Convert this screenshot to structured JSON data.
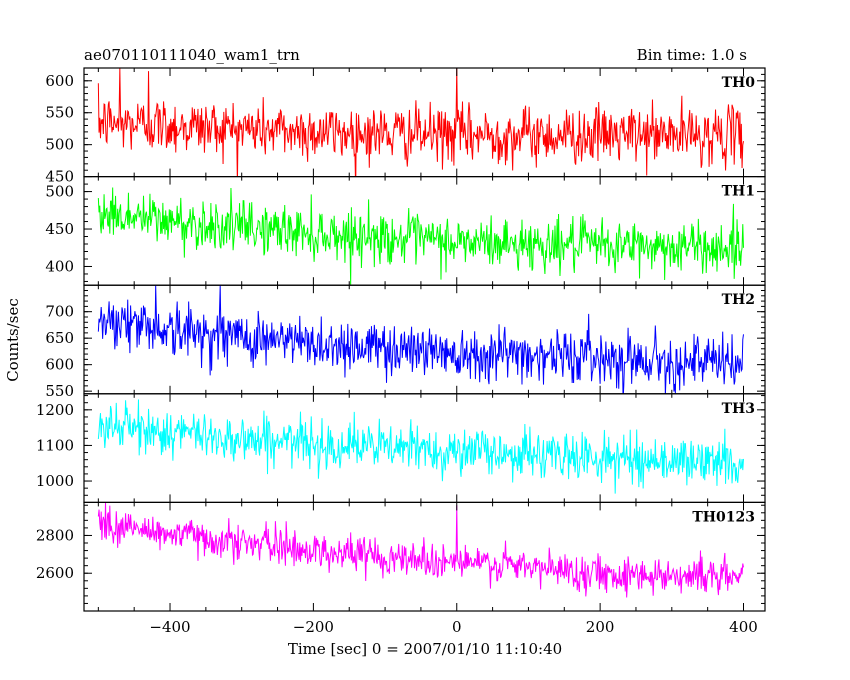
{
  "header": {
    "left_title": "ae070110111040_wam1_trn",
    "right_title": "Bin time: 1.0 s"
  },
  "chart_data": {
    "type": "line",
    "title": "ae070110111040_wam1_trn",
    "subtitle": "Bin time: 1.0 s",
    "xlabel": "Time [sec] 0 = 2007/01/10 11:10:40",
    "ylabel": "Counts/sec",
    "xlim": [
      -520,
      430
    ],
    "x_ticks": [
      -400,
      -200,
      0,
      200,
      400
    ],
    "x_data_range": [
      -500,
      400
    ],
    "bin_time_s": 1.0,
    "grid": false,
    "panels": [
      {
        "name": "TH0",
        "color": "#ff0000",
        "ylim": [
          450,
          620
        ],
        "y_ticks": [
          450,
          500,
          550,
          600
        ],
        "trend": [
          [
            -500,
            535
          ],
          [
            -400,
            530
          ],
          [
            -200,
            520
          ],
          [
            0,
            515
          ],
          [
            200,
            515
          ],
          [
            400,
            515
          ]
        ],
        "noise_sd": 22,
        "spikes": [
          [
            -470,
            620
          ],
          [
            0,
            620
          ],
          [
            -430,
            615
          ]
        ]
      },
      {
        "name": "TH1",
        "color": "#00ff00",
        "ylim": [
          375,
          520
        ],
        "y_ticks": [
          400,
          450,
          500
        ],
        "trend": [
          [
            -500,
            472
          ],
          [
            -400,
            460
          ],
          [
            -200,
            445
          ],
          [
            0,
            432
          ],
          [
            200,
            428
          ],
          [
            400,
            425
          ]
        ],
        "noise_sd": 17,
        "spikes": []
      },
      {
        "name": "TH2",
        "color": "#0000ff",
        "ylim": [
          545,
          750
        ],
        "y_ticks": [
          550,
          600,
          650,
          700
        ],
        "trend": [
          [
            -500,
            690
          ],
          [
            -400,
            665
          ],
          [
            -200,
            640
          ],
          [
            0,
            625
          ],
          [
            200,
            615
          ],
          [
            400,
            600
          ]
        ],
        "noise_sd": 25,
        "spikes": [
          [
            -420,
            750
          ],
          [
            -330,
            750
          ]
        ]
      },
      {
        "name": "TH3",
        "color": "#00ffff",
        "ylim": [
          940,
          1245
        ],
        "y_ticks": [
          1000,
          1100,
          1200
        ],
        "trend": [
          [
            -500,
            1160
          ],
          [
            -400,
            1135
          ],
          [
            -200,
            1105
          ],
          [
            0,
            1085
          ],
          [
            200,
            1065
          ],
          [
            400,
            1050
          ]
        ],
        "noise_sd": 33,
        "spikes": []
      },
      {
        "name": "TH0123",
        "color": "#ff00ff",
        "ylim": [
          2400,
          2975
        ],
        "y_ticks": [
          2600,
          2800
        ],
        "trend": [
          [
            -500,
            2860
          ],
          [
            -400,
            2810
          ],
          [
            -200,
            2720
          ],
          [
            0,
            2660
          ],
          [
            200,
            2600
          ],
          [
            400,
            2580
          ]
        ],
        "noise_sd": 48,
        "spikes": [
          [
            0,
            2960
          ],
          [
            340,
            2720
          ],
          [
            -490,
            2975
          ]
        ]
      }
    ]
  }
}
